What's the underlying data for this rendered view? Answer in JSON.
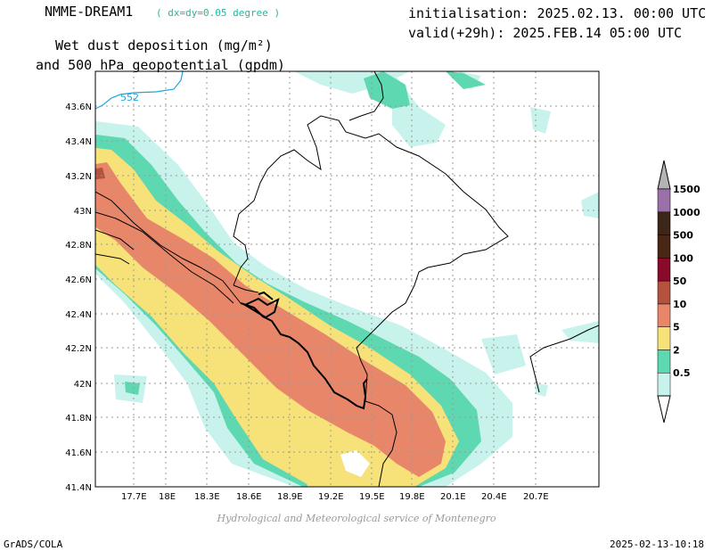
{
  "header": {
    "model": "NMME-DREAM1",
    "resolution": "( dx=dy=0.05 degree )",
    "title_line1": "Wet dust deposition (mg/m²)",
    "title_line2": "and 500 hPa geopotential (gpdm)",
    "initialisation": "initialisation: 2025.02.13. 00:00 UTC",
    "valid": "valid(+29h): 2025.FEB.14 05:00 UTC"
  },
  "footer": {
    "credit": "Hydrological and Meteorological service of Montenegro",
    "software": "GrADS/COLA",
    "timestamp": "2025-02-13-10:18"
  },
  "map": {
    "lon_ticks": [
      "17.7E",
      "18E",
      "18.3E",
      "18.6E",
      "18.9E",
      "19.2E",
      "19.5E",
      "19.8E",
      "20.1E",
      "20.4E",
      "20.7E"
    ],
    "lat_ticks": [
      "43.6N",
      "43.4N",
      "43.2N",
      "43N",
      "42.8N",
      "42.6N",
      "42.4N",
      "42.2N",
      "42N",
      "41.8N",
      "41.6N",
      "41.4N"
    ],
    "geopotential_label": "552",
    "colors": {
      "c0_5": "#c8f2ec",
      "c2": "#5ed8b0",
      "c5": "#f7e27a",
      "c10": "#e8866a",
      "c50": "#b5523e",
      "c100": "#8a0a2c",
      "c500": "#4a2616",
      "c1000": "#3c2618",
      "c1500": "#9a70a8",
      "contour": "#1aa6e0"
    }
  },
  "legend": {
    "labels": [
      "0.5",
      "2",
      "5",
      "10",
      "50",
      "100",
      "500",
      "1000",
      "1500"
    ],
    "colors": [
      "#c8f2ec",
      "#5ed8b0",
      "#f7e27a",
      "#e8866a",
      "#b5523e",
      "#8a0a2c",
      "#4a2616",
      "#3c2618",
      "#9a70a8"
    ],
    "cap_top": "#b4b4b4",
    "cap_bottom": "#ffffff"
  }
}
